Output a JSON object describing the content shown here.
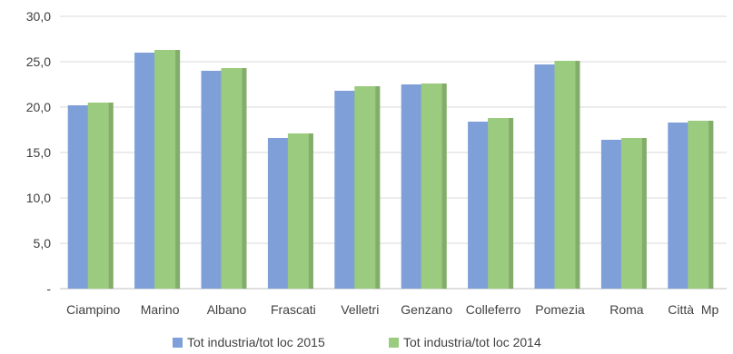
{
  "chart_data": {
    "type": "bar",
    "categories": [
      "Ciampino",
      "Marino",
      "Albano",
      "Frascati",
      "Velletri",
      "Genzano",
      "Colleferro",
      "Pomezia",
      "Roma",
      "Città  Mp"
    ],
    "series": [
      {
        "name": "Tot industria/tot loc 2015",
        "color": "#7F9FD8",
        "values": [
          20.2,
          26.0,
          24.0,
          16.6,
          21.8,
          22.5,
          18.4,
          24.7,
          16.4,
          18.3
        ]
      },
      {
        "name": "Tot industria/tot loc 2014",
        "color": "#9BCB7E",
        "values": [
          20.5,
          26.3,
          24.3,
          17.1,
          22.3,
          22.6,
          18.8,
          25.1,
          16.6,
          18.5
        ]
      }
    ],
    "y_ticks": [
      "-",
      "5,0",
      "10,0",
      "15,0",
      "20,0",
      "25,0",
      "30,0"
    ],
    "ylim": [
      0,
      30
    ],
    "grid": true,
    "legend_position": "bottom"
  }
}
